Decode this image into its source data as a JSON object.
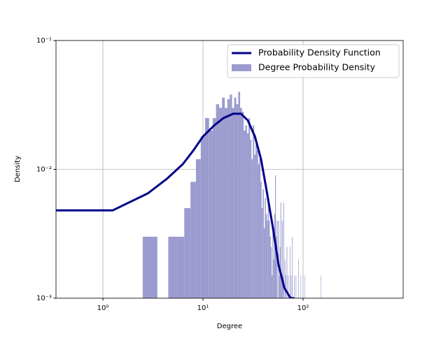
{
  "chart_data": {
    "type": "histogram",
    "xlabel": "Degree",
    "ylabel": "Density",
    "xscale": "log",
    "yscale": "log",
    "grid": true,
    "legend": "upper right",
    "xlim": [
      0.34,
      1000
    ],
    "ylim": [
      0.001,
      0.1
    ],
    "xticks": [
      {
        "value": 1,
        "label": "10⁰"
      },
      {
        "value": 10,
        "label": "10¹"
      },
      {
        "value": 100,
        "label": "10²"
      }
    ],
    "yticks": [
      {
        "value": 0.001,
        "label": "10⁻³"
      },
      {
        "value": 0.01,
        "label": "10⁻²"
      },
      {
        "value": 0.1,
        "label": "10⁻¹"
      }
    ],
    "series": [
      {
        "type": "line",
        "name": "Probability Density Function",
        "color": "#00008b",
        "x": [
          0.34,
          1.25,
          2.8,
          4.4,
          6.3,
          8,
          10,
          13,
          16,
          20,
          24,
          28,
          33,
          38,
          43,
          50,
          57,
          65,
          75,
          82
        ],
        "values": [
          0.0048,
          0.0048,
          0.0065,
          0.0085,
          0.011,
          0.014,
          0.018,
          0.022,
          0.025,
          0.027,
          0.027,
          0.024,
          0.018,
          0.012,
          0.007,
          0.0035,
          0.0018,
          0.0012,
          0.001,
          0.001
        ]
      },
      {
        "type": "histogram",
        "name": "Degree Probability Density",
        "color": "#9b9bcf",
        "bins": [
          2.5,
          3.5,
          4.5,
          5.5,
          6.5,
          7.5,
          8.5,
          9.5,
          10.5,
          11.5,
          12.5,
          13.5,
          14.5,
          15.5,
          16.5,
          17.5,
          18.5,
          19.5,
          20.5,
          21.5,
          22.5,
          23.5,
          24.5,
          25.5,
          26.5,
          27.5,
          28.5,
          29.5,
          30.5,
          31.5,
          32.5,
          33.5,
          34.5,
          35.5,
          36.5,
          37.5,
          38.5,
          39.5,
          40.5,
          41.5,
          42.5,
          43.5,
          44.5,
          45.5,
          46.5,
          47.5,
          48.5,
          49.5,
          50.5,
          51.5,
          52.5,
          53.5,
          54.5,
          55.5,
          56.5,
          57.5,
          58.5,
          59.5,
          60.5,
          61.5,
          62.5,
          63.5,
          64.5,
          65.5,
          66.5,
          67.5,
          68.5,
          69.5,
          70.5,
          71.5,
          72.5,
          73.5,
          74.5,
          75.5,
          76.5,
          77.5,
          78.5,
          79.5,
          80.5,
          81.5,
          82.5,
          83.5,
          84.5,
          85.5,
          86.5,
          89.5,
          90.5,
          94.5,
          95.5,
          99.5,
          100.5,
          103.5,
          104.5,
          149.5,
          150.5
        ],
        "values": [
          0.003,
          0,
          0.003,
          0.003,
          0.005,
          0.008,
          0.012,
          0.018,
          0.025,
          0.02,
          0.025,
          0.032,
          0.03,
          0.036,
          0.03,
          0.035,
          0.038,
          0.03,
          0.036,
          0.032,
          0.04,
          0.03,
          0.028,
          0.02,
          0.022,
          0.019,
          0.025,
          0.017,
          0.012,
          0.022,
          0.013,
          0.016,
          0.014,
          0.011,
          0.012,
          0.008,
          0.005,
          0.007,
          0.0035,
          0.006,
          0.0045,
          0.004,
          0.006,
          0.004,
          0.003,
          0.0025,
          0.0015,
          0.0035,
          0.002,
          0.0045,
          0.009,
          0.003,
          0.004,
          0,
          0.004,
          0.0015,
          0.0025,
          0.0055,
          0.0015,
          0.004,
          0.0015,
          0.0055,
          0,
          0.002,
          0.0015,
          0,
          0.0025,
          0,
          0.0015,
          0,
          0,
          0.0025,
          0,
          0.0015,
          0,
          0.003,
          0,
          0,
          0,
          0.0015,
          0,
          0,
          0.0015,
          0,
          0,
          0.002,
          0,
          0.0015,
          0,
          0.0015,
          0,
          0.0015,
          0,
          0.0015
        ]
      }
    ]
  }
}
